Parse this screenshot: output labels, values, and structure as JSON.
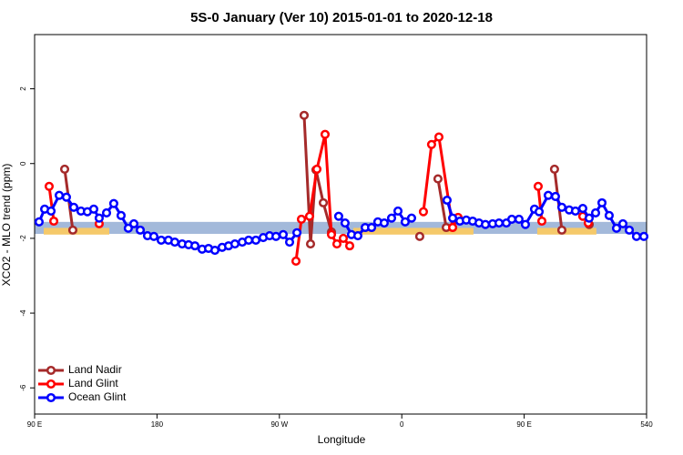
{
  "chart_data": {
    "type": "line",
    "title": "5S-0 January (Ver 10)   2015-01-01 to 2020-12-18",
    "x_label": "Longitude",
    "y_label": "XCO2 - MLO trend (ppm)",
    "xlim": [
      90,
      540
    ],
    "ylim": [
      -6.7,
      3.45
    ],
    "xticks": [
      {
        "value": 90,
        "label": "90 E"
      },
      180,
      {
        "value": 270,
        "label": "90 W"
      },
      {
        "value": 360,
        "label": "0"
      },
      {
        "value": 450,
        "label": "90 E"
      },
      540
    ],
    "yticks": [
      -6,
      -4,
      -2,
      0,
      2
    ],
    "reference_band": {
      "ylim": [
        -1.88,
        -1.56
      ],
      "color": "#a3b9da"
    },
    "highlights": {
      "color": "#f5c96a",
      "ylim": [
        -1.9,
        -1.72
      ],
      "ranges": [
        [
          96.7,
          144.9
        ],
        [
          324.4,
          412.7
        ],
        [
          459.6,
          503.1
        ]
      ]
    },
    "legend": "bottom-left",
    "series": [
      {
        "name": "Land Nadir",
        "color": "#a52a2a",
        "x": [
          112.1,
          118.1,
          null,
          288.2,
          292.9,
          296.9,
          302.3,
          308.3,
          null,
          373.2,
          null,
          386.6,
          392.7,
          null,
          472.3,
          477.7,
          null,
          497.8
        ],
        "values": [
          -0.15,
          -1.78,
          null,
          1.29,
          -2.15,
          -0.17,
          -1.05,
          -1.83,
          null,
          -1.95,
          null,
          -0.41,
          -1.71,
          null,
          -0.15,
          -1.78,
          null,
          -1.63
        ]
      },
      {
        "name": "Land Glint",
        "color": "#ff0000",
        "x": [
          100.7,
          104.1,
          null,
          137.5,
          null,
          282.2,
          286.2,
          292.2,
          297.6,
          303.6,
          308.3,
          312.3,
          317.0,
          321.7,
          null,
          375.9,
          381.9,
          387.3,
          397.4,
          401.4,
          null,
          460.3,
          463.0,
          null,
          493.1,
          497.1
        ],
        "values": [
          -0.61,
          -1.54,
          null,
          -1.61,
          null,
          -2.61,
          -1.49,
          -1.41,
          -0.15,
          0.78,
          -1.9,
          -2.15,
          -2.0,
          -2.2,
          null,
          -1.29,
          0.51,
          0.71,
          -1.71,
          -1.44,
          null,
          -0.61,
          -1.54,
          null,
          -1.41,
          -1.59
        ]
      },
      {
        "name": "Ocean Glint",
        "color": "#0000ff",
        "x": [
          93.3,
          97.4,
          102.1,
          108.1,
          113.4,
          118.8,
          124.1,
          128.8,
          133.5,
          137.5,
          142.9,
          148.2,
          153.6,
          158.9,
          163.0,
          167.7,
          173.0,
          177.7,
          183.1,
          188.4,
          193.1,
          198.5,
          203.2,
          207.9,
          213.2,
          217.9,
          222.6,
          227.9,
          232.6,
          237.3,
          242.7,
          247.4,
          252.7,
          258.1,
          262.8,
          267.5,
          272.8,
          277.5,
          282.9,
          null,
          313.6,
          318.3,
          323.0,
          327.7,
          333.1,
          337.8,
          342.4,
          347.1,
          352.5,
          357.2,
          362.5,
          367.2,
          null,
          393.3,
          397.4,
          402.7,
          407.4,
          412.1,
          416.8,
          421.5,
          426.8,
          431.5,
          436.9,
          440.9,
          446.2,
          450.9,
          457.6,
          461.0,
          467.7,
          473.0,
          477.7,
          483.1,
          487.7,
          493.1,
          497.8,
          502.5,
          507.2,
          512.5,
          517.9,
          522.6,
          527.3,
          532.6,
          538.0
        ],
        "values": [
          -1.56,
          -1.22,
          -1.27,
          -0.85,
          -0.9,
          -1.17,
          -1.27,
          -1.29,
          -1.22,
          -1.46,
          -1.32,
          -1.07,
          -1.39,
          -1.73,
          -1.61,
          -1.78,
          -1.93,
          -1.95,
          -2.05,
          -2.05,
          -2.1,
          -2.15,
          -2.17,
          -2.2,
          -2.29,
          -2.27,
          -2.32,
          -2.24,
          -2.2,
          -2.15,
          -2.1,
          -2.05,
          -2.05,
          -1.98,
          -1.93,
          -1.95,
          -1.9,
          -2.1,
          -1.85,
          null,
          -1.41,
          -1.59,
          -1.9,
          -1.93,
          -1.71,
          -1.71,
          -1.56,
          -1.59,
          -1.46,
          -1.27,
          -1.56,
          -1.46,
          null,
          -0.98,
          -1.46,
          -1.54,
          -1.51,
          -1.54,
          -1.59,
          -1.63,
          -1.61,
          -1.59,
          -1.59,
          -1.49,
          -1.49,
          -1.63,
          -1.22,
          -1.29,
          -0.85,
          -0.88,
          -1.17,
          -1.24,
          -1.27,
          -1.2,
          -1.46,
          -1.32,
          -1.05,
          -1.39,
          -1.73,
          -1.61,
          -1.78,
          -1.95,
          -1.95
        ]
      }
    ]
  }
}
